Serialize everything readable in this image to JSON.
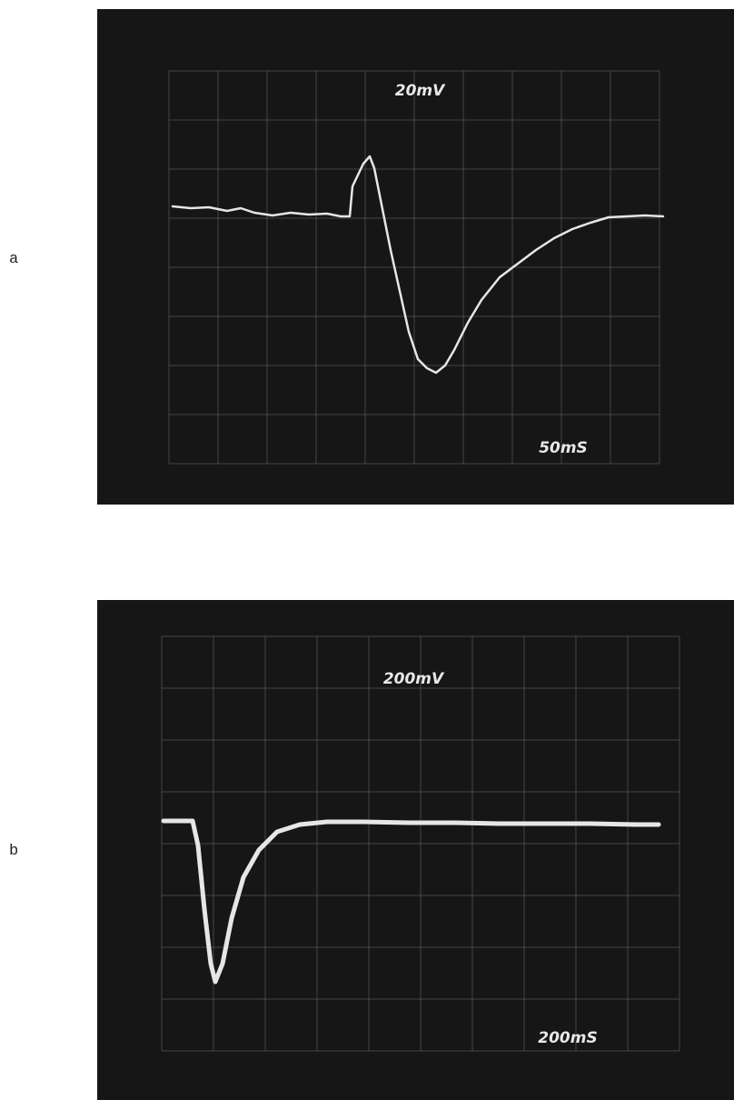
{
  "panels": [
    {
      "label": "a",
      "volts": "20mV",
      "time": "50mS"
    },
    {
      "label": "b",
      "volts": "200mV",
      "time": "200mS"
    }
  ]
}
